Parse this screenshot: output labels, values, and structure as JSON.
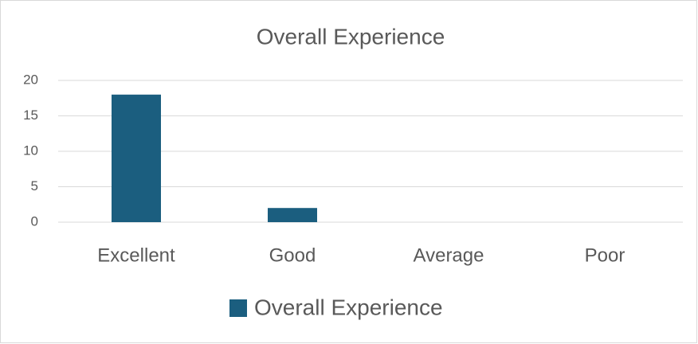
{
  "chart_data": {
    "type": "bar",
    "title": "Overall Experience",
    "categories": [
      "Excellent",
      "Good",
      "Average",
      "Poor"
    ],
    "series": [
      {
        "name": "Overall Experience",
        "color": "#1b5e7f",
        "values": [
          18,
          2,
          0,
          0
        ]
      }
    ],
    "ylim": [
      0,
      20
    ],
    "yticks": [
      0,
      5,
      10,
      15,
      20
    ],
    "grid": true,
    "legend": "bottom"
  }
}
